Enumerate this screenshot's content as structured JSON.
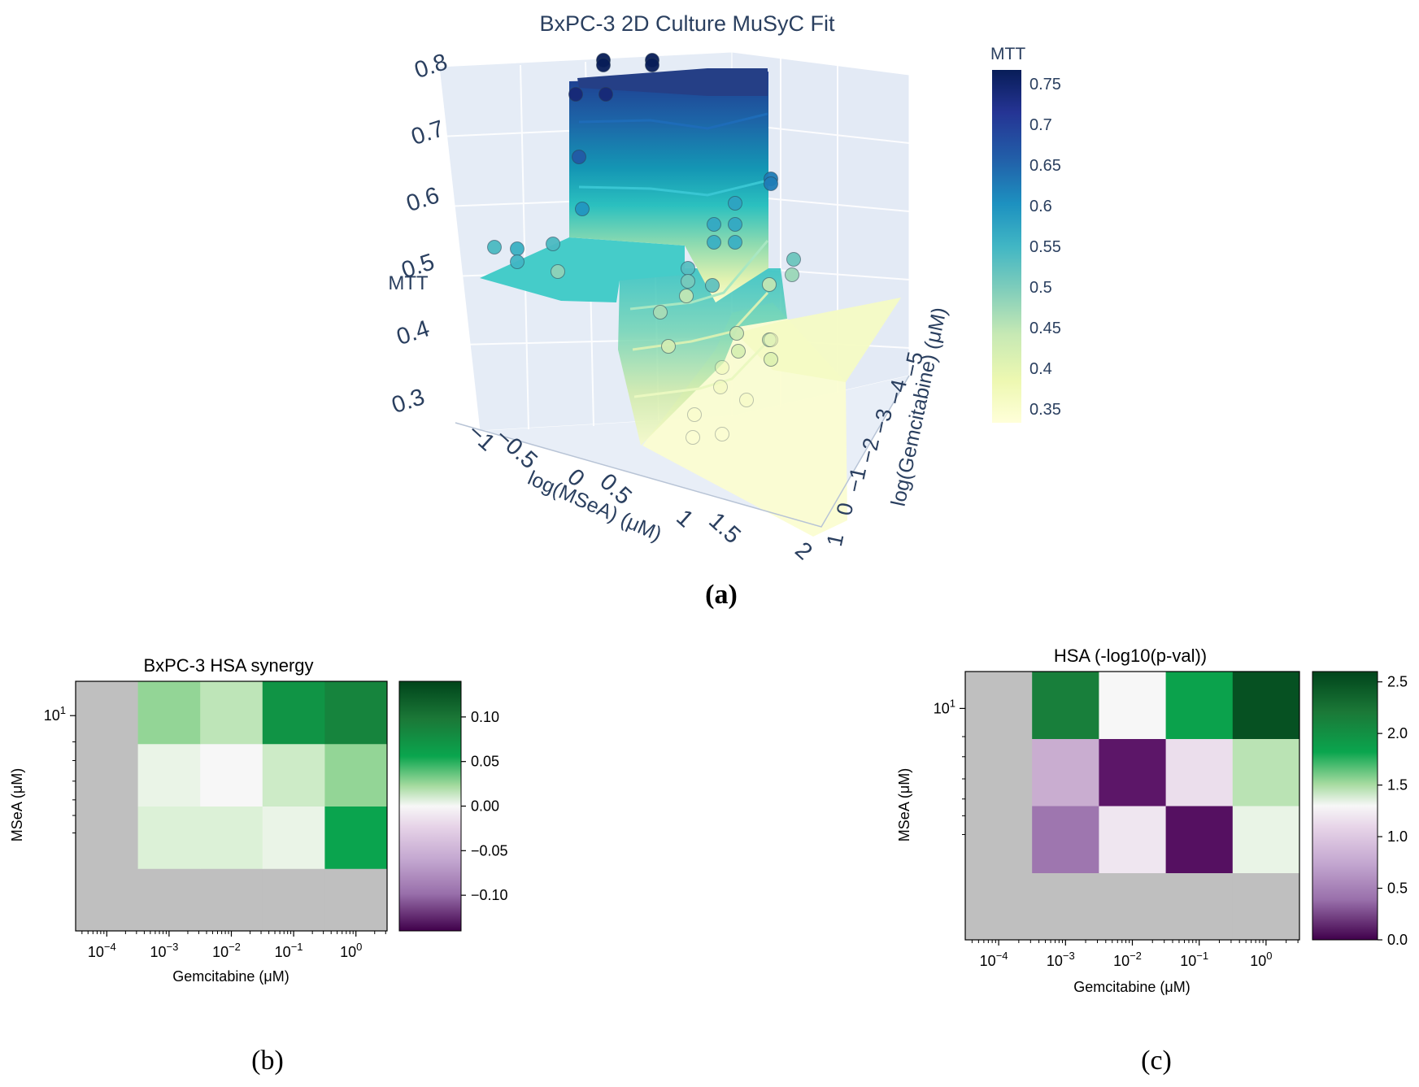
{
  "chart_data": [
    {
      "type": "surface3d",
      "title": "BxPC-3 2D Culture MuSyC Fit",
      "zlabel": "MTT",
      "xlabel": "log(MSeA) (μM)",
      "ylabel": "log(Gemcitabine) (μM)",
      "z_ticks": [
        "0.3",
        "0.4",
        "0.5",
        "0.6",
        "0.7",
        "0.8"
      ],
      "x_ticks": [
        "−1",
        "−0.5",
        "0",
        "0.5",
        "1",
        "1.5",
        "2"
      ],
      "y_ticks": [
        "−5",
        "−4",
        "−3",
        "−2",
        "−1",
        "0",
        "1"
      ],
      "colorbar": {
        "title": "MTT",
        "ticks": [
          "0.75",
          "0.7",
          "0.65",
          "0.6",
          "0.55",
          "0.5",
          "0.45",
          "0.4",
          "0.35"
        ],
        "colors": [
          "#0a1f5c",
          "#1f3a8e",
          "#1d66a8",
          "#1496b4",
          "#2bc0bf",
          "#6ed3b4",
          "#bfe5a3",
          "#eef7bd",
          "#ffffd9"
        ]
      },
      "plateaus": {
        "top": 0.77,
        "left": 0.52,
        "bottom": 0.33
      },
      "points": [
        {
          "mtt": 0.79
        },
        {
          "mtt": 0.79
        },
        {
          "mtt": 0.79
        },
        {
          "mtt": 0.79
        },
        {
          "mtt": 0.76
        },
        {
          "mtt": 0.76
        },
        {
          "mtt": 0.68
        },
        {
          "mtt": 0.64
        },
        {
          "mtt": 0.64
        },
        {
          "mtt": 0.61
        },
        {
          "mtt": 0.59
        },
        {
          "mtt": 0.58
        },
        {
          "mtt": 0.58
        },
        {
          "mtt": 0.57
        },
        {
          "mtt": 0.57
        },
        {
          "mtt": 0.57
        },
        {
          "mtt": 0.56
        },
        {
          "mtt": 0.55
        },
        {
          "mtt": 0.55
        },
        {
          "mtt": 0.54
        },
        {
          "mtt": 0.53
        },
        {
          "mtt": 0.52
        },
        {
          "mtt": 0.51
        },
        {
          "mtt": 0.49
        },
        {
          "mtt": 0.48
        },
        {
          "mtt": 0.47
        },
        {
          "mtt": 0.45
        },
        {
          "mtt": 0.45
        },
        {
          "mtt": 0.44
        },
        {
          "mtt": 0.44
        },
        {
          "mtt": 0.43
        },
        {
          "mtt": 0.42
        },
        {
          "mtt": 0.41
        },
        {
          "mtt": 0.38
        },
        {
          "mtt": 0.37
        },
        {
          "mtt": 0.37
        },
        {
          "mtt": 0.36
        },
        {
          "mtt": 0.35
        },
        {
          "mtt": 0.34
        },
        {
          "mtt": 0.34
        }
      ]
    },
    {
      "type": "heatmap",
      "title": "BxPC-3 HSA synergy",
      "xlabel": "Gemcitabine (μM)",
      "ylabel": "MSeA (μM)",
      "x_ticks": [
        {
          "base": "10",
          "exp": "−4"
        },
        {
          "base": "10",
          "exp": "−3"
        },
        {
          "base": "10",
          "exp": "−2"
        },
        {
          "base": "10",
          "exp": "−1"
        },
        {
          "base": "10",
          "exp": "0"
        }
      ],
      "y_ticks": [
        {
          "base": "10",
          "exp": "1"
        }
      ],
      "vmin": -0.14,
      "vmax": 0.14,
      "cells": [
        [
          null,
          null,
          null,
          null,
          null
        ],
        [
          null,
          0.02,
          0.02,
          0.01,
          0.09
        ],
        [
          null,
          0.01,
          0.0,
          0.03,
          0.06
        ],
        [
          null,
          0.06,
          0.04,
          0.1,
          0.11
        ]
      ],
      "colorbar_ticks": [
        "0.10",
        "0.05",
        "0.00",
        "−0.05",
        "−0.10"
      ],
      "colorbar_values": [
        0.1,
        0.05,
        0.0,
        -0.05,
        -0.1
      ],
      "missing_color": "#bfbfbf"
    },
    {
      "type": "heatmap",
      "title": "HSA (-log10(p-val))",
      "xlabel": "Gemcitabine (μM)",
      "ylabel": "MSeA (μM)",
      "x_ticks": [
        {
          "base": "10",
          "exp": "−4"
        },
        {
          "base": "10",
          "exp": "−3"
        },
        {
          "base": "10",
          "exp": "−2"
        },
        {
          "base": "10",
          "exp": "−1"
        },
        {
          "base": "10",
          "exp": "0"
        }
      ],
      "y_ticks": [
        {
          "base": "10",
          "exp": "1"
        }
      ],
      "vmin": 0.0,
      "vmax": 2.6,
      "cells": [
        [
          null,
          null,
          null,
          null,
          null
        ],
        [
          null,
          0.75,
          1.2,
          0.15,
          1.4
        ],
        [
          null,
          0.95,
          0.2,
          1.15,
          1.7
        ],
        [
          null,
          2.35,
          1.3,
          2.15,
          2.55
        ]
      ],
      "colorbar_ticks": [
        "2.5",
        "2.0",
        "1.5",
        "1.0",
        "0.5",
        "0.0"
      ],
      "colorbar_values": [
        2.5,
        2.0,
        1.5,
        1.0,
        0.5,
        0.0
      ],
      "missing_color": "#bfbfbf"
    }
  ],
  "panel_labels": {
    "a": "(a)",
    "b": "(b)",
    "c": "(c)"
  }
}
